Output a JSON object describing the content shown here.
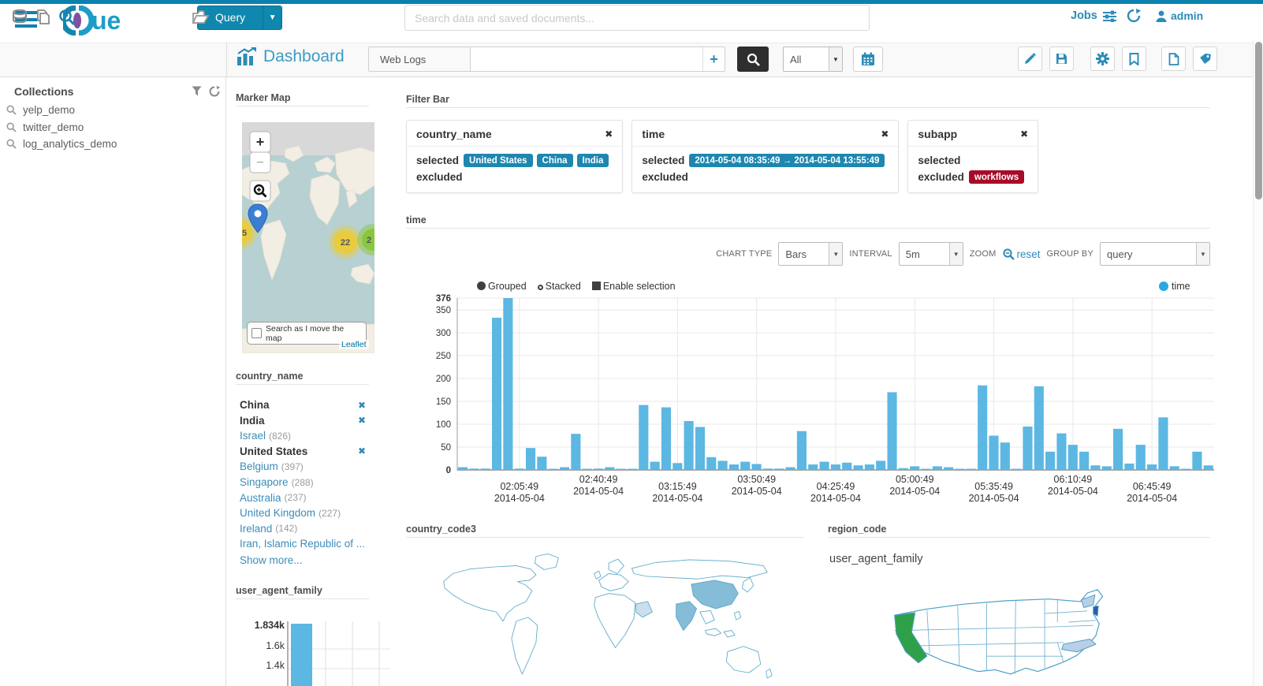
{
  "topbar": {
    "logo_text": "ue",
    "query_button": "Query",
    "search_placeholder": "Search data and saved documents...",
    "jobs_label": "Jobs",
    "user_label": "admin"
  },
  "toolbar": {
    "title": "Dashboard",
    "collection_label": "Web Logs",
    "dash_search_value": "",
    "plus_label": "+",
    "all_option": "All"
  },
  "sidebar": {
    "title": "Collections",
    "items": [
      "yelp_demo",
      "twitter_demo",
      "log_analytics_demo"
    ]
  },
  "left_column": {
    "marker_map": {
      "title": "Marker Map",
      "zoom_in": "+",
      "zoom_out": "−",
      "search_checkbox_label": "Search as I move the map",
      "attribution": "Leaflet",
      "clusters": [
        {
          "label": "5",
          "color": "#e9cb3f"
        },
        {
          "label": "22",
          "color": "#e9cb3f"
        },
        {
          "label": "2",
          "color": "#8bc63f"
        }
      ]
    },
    "country_facet": {
      "title": "country_name",
      "items": [
        {
          "name": "China",
          "selected": true
        },
        {
          "name": "India",
          "selected": true
        },
        {
          "name": "Israel",
          "count": "826"
        },
        {
          "name": "United States",
          "selected": true
        },
        {
          "name": "Belgium",
          "count": "397"
        },
        {
          "name": "Singapore",
          "count": "288"
        },
        {
          "name": "Australia",
          "count": "237"
        },
        {
          "name": "United Kingdom",
          "count": "227"
        },
        {
          "name": "Ireland",
          "count": "142"
        },
        {
          "name": "Iran, Islamic Republic of ..."
        }
      ],
      "show_more": "Show more..."
    },
    "user_agent_title": "user_agent_family"
  },
  "filter_bar": {
    "title": "Filter Bar",
    "selected_label": "selected",
    "excluded_label": "excluded",
    "cards": [
      {
        "name": "country_name",
        "selected": [
          "United States",
          "China",
          "India"
        ],
        "excluded": []
      },
      {
        "name": "time",
        "selected": [
          "2014-05-04  08:35:49 → 2014-05-04  13:55:49"
        ],
        "excluded": []
      },
      {
        "name": "subapp",
        "selected": [],
        "excluded": [
          "workflows"
        ]
      }
    ]
  },
  "time_section": {
    "title": "time",
    "chart_type_label": "CHART TYPE",
    "chart_type_value": "Bars",
    "interval_label": "INTERVAL",
    "interval_value": "5m",
    "zoom_label": "ZOOM",
    "reset_label": "reset",
    "group_by_label": "GROUP BY",
    "group_by_value": "query",
    "legend": [
      "Grouped",
      "Stacked",
      "Enable selection"
    ],
    "series_legend": "time"
  },
  "bottom": {
    "country_code3_title": "country_code3",
    "region_code_title": "region_code",
    "user_agent_family_label": "user_agent_family"
  },
  "colors": {
    "brand": "#0f87ae",
    "link": "#338bb8",
    "bar": "#5cb7e3",
    "pill": "#1d87b0",
    "pill_excluded": "#a70b28",
    "map_medium": "#85bcd8",
    "map_light": "#cadfeb",
    "us_green": "#2fa04a",
    "us_light": "#b9cfe8",
    "us_dark": "#2a5caa"
  },
  "chart_data": [
    {
      "type": "bar",
      "title": "time",
      "series": [
        {
          "name": "time",
          "color": "#5cb7e3",
          "values": [
            6,
            3,
            3,
            333,
            376,
            3,
            48,
            29,
            2,
            6,
            79,
            2,
            3,
            6,
            2,
            2,
            142,
            18,
            137,
            15,
            107,
            94,
            28,
            20,
            12,
            18,
            13,
            3,
            3,
            6,
            85,
            12,
            18,
            12,
            16,
            10,
            12,
            20,
            170,
            4,
            8,
            2,
            8,
            6,
            2,
            2,
            185,
            75,
            60,
            2,
            95,
            183,
            40,
            80,
            55,
            40,
            10,
            8,
            90,
            14,
            55,
            12,
            115,
            8,
            2,
            40,
            10
          ]
        }
      ],
      "ylim": [
        0,
        376
      ],
      "yticks": [
        0,
        50,
        100,
        150,
        200,
        250,
        300,
        350,
        376
      ],
      "interval": "5m",
      "xticks": [
        {
          "i": 5,
          "time": "02:05:49",
          "date": "2014-05-04"
        },
        {
          "i": 12,
          "time": "02:40:49",
          "date": "2014-05-04"
        },
        {
          "i": 19,
          "time": "03:15:49",
          "date": "2014-05-04"
        },
        {
          "i": 26,
          "time": "03:50:49",
          "date": "2014-05-04"
        },
        {
          "i": 33,
          "time": "04:25:49",
          "date": "2014-05-04"
        },
        {
          "i": 40,
          "time": "05:00:49",
          "date": "2014-05-04"
        },
        {
          "i": 47,
          "time": "05:35:49",
          "date": "2014-05-04"
        },
        {
          "i": 54,
          "time": "06:10:49",
          "date": "2014-05-04"
        },
        {
          "i": 61,
          "time": "06:45:49",
          "date": "2014-05-04"
        }
      ],
      "grid": true,
      "legend_position": "top"
    },
    {
      "type": "bar",
      "title": "user_agent_family",
      "values": [
        1834
      ],
      "ylim": [
        1200,
        1834
      ],
      "ytick_labels": [
        "1.834k",
        "1.6k",
        "1.4k"
      ]
    },
    {
      "type": "heatmap",
      "subtype": "world-choropleth",
      "title": "country_code3",
      "highlights": {
        "CHN": "medium",
        "IND": "medium",
        "SAU": "light"
      }
    },
    {
      "type": "heatmap",
      "subtype": "us-choropleth",
      "title": "region_code",
      "highlights": {
        "CA": "green",
        "NY": "light",
        "NJ": "dark",
        "NC": "light"
      }
    }
  ]
}
